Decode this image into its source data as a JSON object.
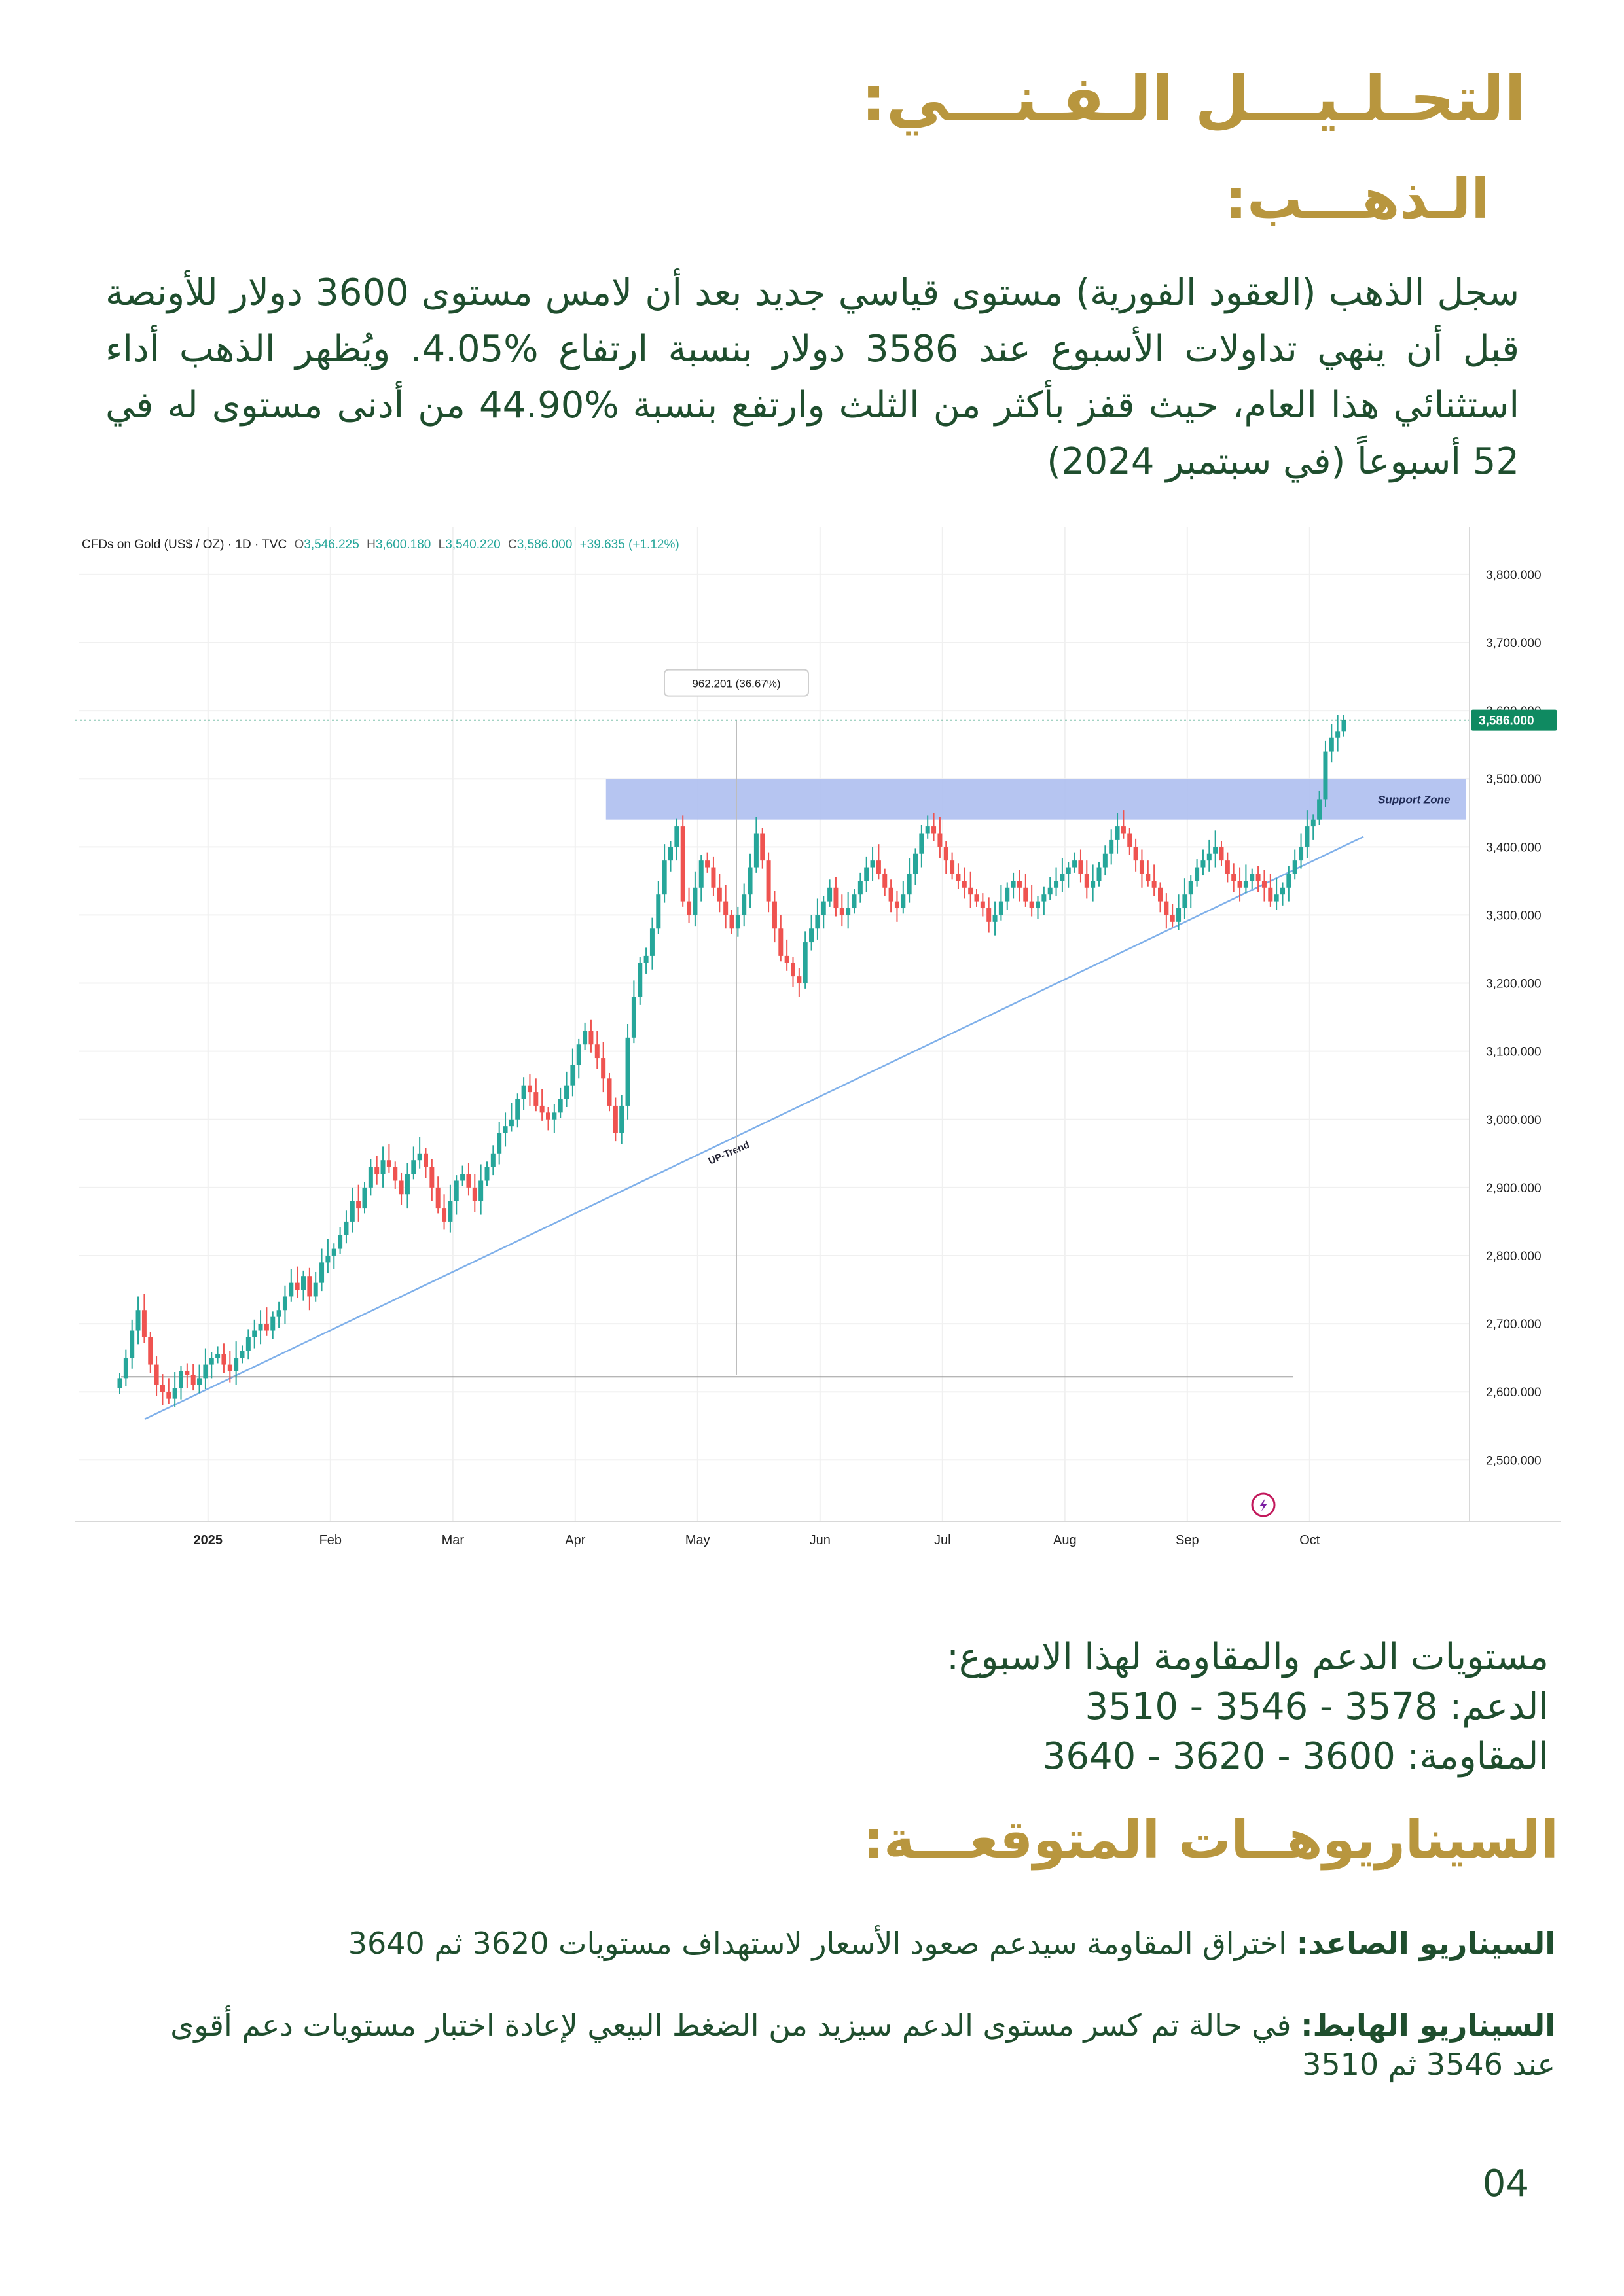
{
  "heading": "التحـلـيـــل الـفـنـــي:",
  "subheading": "الـذهـــب:",
  "intro": "سجل الذهب (العقود الفورية) مستوى قياسي جديد بعد أن لامس مستوى 3600 دولار للأونصة قبل أن ينهي تداولات الأسبوع عند 3586 دولار بنسبة ارتفاع %4.05. ويُظهر الذهب أداء استثنائي هذا العام، حيث قفز بأكثر من الثلث وارتفع بنسبة %44.90 من أدنى مستوى له في 52 أسبوعاً (في سبتمبر 2024)",
  "chart_data": {
    "type": "candlestick",
    "symbol": "CFDs on Gold (US$ / OZ) · 1D · TVC",
    "ohlc": {
      "O": "3,546.225",
      "H": "3,600.180",
      "L": "3,540.220",
      "C": "3,586.000",
      "change": "+39.635 (+1.12%)"
    },
    "colors": {
      "up": "#26a69a",
      "down": "#ef5350",
      "zone": "#aebfef",
      "trend": "#7fb0ea",
      "price_tag": "#0f8a61"
    },
    "y_ticks": [
      "3,800.000",
      "3,700.000",
      "3,600.000",
      "3,500.000",
      "3,400.000",
      "3,300.000",
      "3,200.000",
      "3,100.000",
      "3,000.000",
      "2,900.000",
      "2,800.000",
      "2,700.000",
      "2,600.000",
      "2,500.000"
    ],
    "ylim": [
      2410,
      3870
    ],
    "x_ticks": [
      "2025",
      "Feb",
      "Mar",
      "Apr",
      "May",
      "Jun",
      "Jul",
      "Aug",
      "Sep",
      "Oct"
    ],
    "last_price_label": "3,586.000",
    "measure_label": "962.201 (36.67%)",
    "support_zone": {
      "label": "Support Zone",
      "range": [
        3440,
        3500
      ]
    },
    "trendline": {
      "label": "UP-Trend",
      "from": [
        3,
        2560
      ],
      "to": [
        200,
        3415
      ]
    },
    "closes": [
      2620,
      2650,
      2690,
      2720,
      2680,
      2640,
      2610,
      2600,
      2590,
      2605,
      2630,
      2625,
      2610,
      2620,
      2640,
      2650,
      2655,
      2640,
      2630,
      2650,
      2660,
      2680,
      2690,
      2700,
      2690,
      2710,
      2720,
      2740,
      2760,
      2750,
      2770,
      2740,
      2760,
      2790,
      2800,
      2810,
      2830,
      2850,
      2880,
      2870,
      2900,
      2930,
      2920,
      2940,
      2930,
      2910,
      2890,
      2920,
      2940,
      2950,
      2930,
      2900,
      2870,
      2850,
      2880,
      2910,
      2920,
      2900,
      2880,
      2910,
      2930,
      2950,
      2980,
      2990,
      3000,
      3030,
      3050,
      3040,
      3020,
      3010,
      3000,
      3010,
      3030,
      3050,
      3080,
      3110,
      3130,
      3110,
      3090,
      3060,
      3020,
      2980,
      3020,
      3120,
      3180,
      3230,
      3240,
      3280,
      3330,
      3380,
      3400,
      3430,
      3320,
      3300,
      3340,
      3380,
      3370,
      3340,
      3320,
      3300,
      3280,
      3300,
      3330,
      3370,
      3420,
      3380,
      3320,
      3280,
      3240,
      3230,
      3210,
      3200,
      3260,
      3280,
      3300,
      3320,
      3340,
      3310,
      3300,
      3310,
      3330,
      3350,
      3370,
      3380,
      3360,
      3340,
      3320,
      3310,
      3330,
      3360,
      3390,
      3420,
      3430,
      3420,
      3400,
      3380,
      3360,
      3350,
      3340,
      3330,
      3320,
      3310,
      3290,
      3300,
      3320,
      3340,
      3350,
      3340,
      3320,
      3310,
      3320,
      3330,
      3340,
      3350,
      3360,
      3370,
      3380,
      3360,
      3340,
      3350,
      3370,
      3390,
      3410,
      3430,
      3420,
      3400,
      3380,
      3360,
      3350,
      3340,
      3320,
      3300,
      3290,
      3310,
      3330,
      3350,
      3370,
      3380,
      3390,
      3400,
      3380,
      3360,
      3350,
      3340,
      3350,
      3360,
      3350,
      3340,
      3320,
      3330,
      3340,
      3360,
      3380,
      3400,
      3430,
      3440,
      3470,
      3540,
      3560,
      3570,
      3586
    ]
  },
  "levels": {
    "title": "مستويات الدعم والمقاومة لهذا الاسبوع:",
    "support": "الدعم: 3578 - 3546 - 3510",
    "resistance": "المقاومة: 3600 - 3620 - 3640"
  },
  "scenarios": {
    "title": "السيناريوهــات المتوقعـــة:",
    "up_label": "السيناريو الصاعد:",
    "up_text": " اختراق المقاومة سيدعم صعود الأسعار لاستهداف مستويات 3620 ثم 3640",
    "down_label": "السيناريو الهابط:",
    "down_text": " في حالة تم كسر مستوى الدعم سيزيد من الضغط البيعي لإعادة اختبار مستويات دعم أقوى عند 3546 ثم 3510"
  },
  "page_number": "04"
}
